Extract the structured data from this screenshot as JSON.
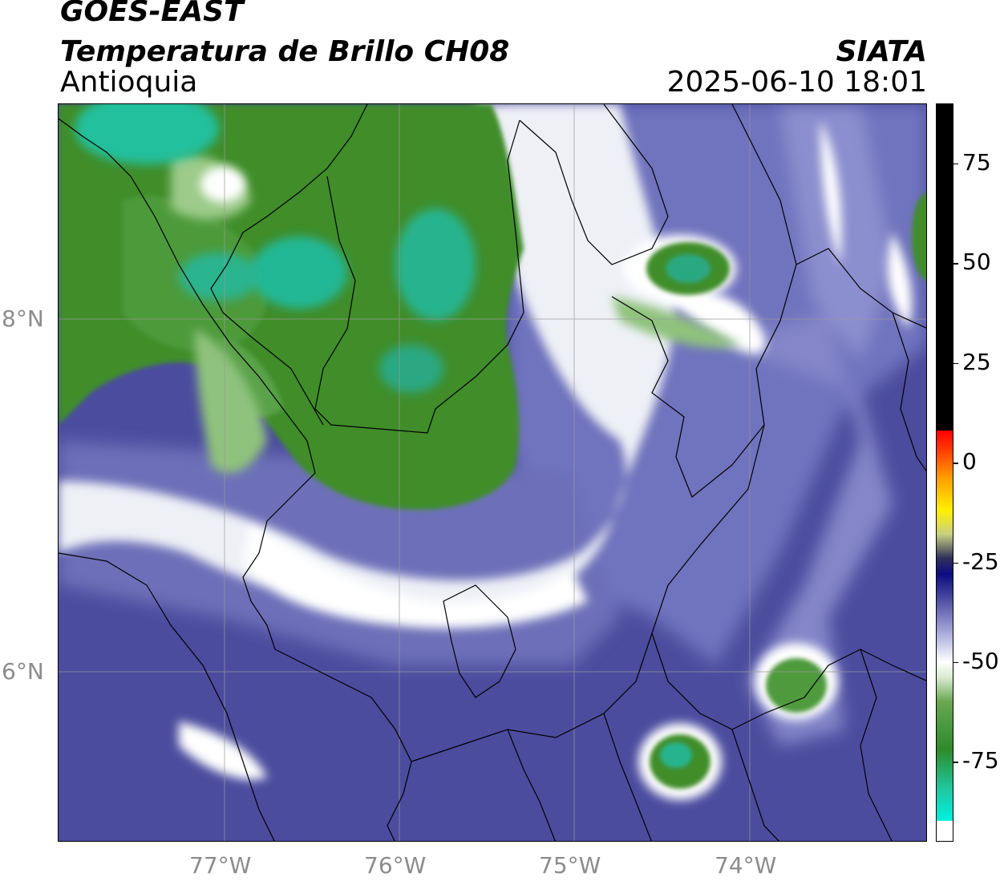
{
  "header": {
    "satellite": "GOES-EAST",
    "product": "Temperatura de Brillo CH08",
    "region": "Antioquia",
    "agency": "SIATA",
    "timestamp": "2025-06-10 18:01"
  },
  "map": {
    "longitude_labels": [
      "77°W",
      "76°W",
      "75°W",
      "74°W"
    ],
    "latitude_labels": [
      "8°N",
      "6°N"
    ],
    "longitudes": [
      -77,
      -76,
      -75,
      -74
    ],
    "latitudes": [
      8,
      6
    ],
    "colors": {
      "cold_cloud_green": "#3f8f2a",
      "cold_cloud_cyan": "#22c4a0",
      "transition_white": "#ffffff",
      "mid_blue": "#6a6db8",
      "deep_blue": "#46479b",
      "border_line": "#000000",
      "grid_line": "#9a9a9a"
    }
  },
  "colorbar": {
    "tick_labels": [
      "75",
      "50",
      "25",
      "0",
      "-25",
      "-50",
      "-75"
    ],
    "tick_values": [
      75,
      50,
      25,
      0,
      -25,
      -50,
      -75
    ],
    "range": [
      -95,
      90
    ],
    "stops": [
      {
        "v": -95,
        "c": "#ffffff"
      },
      {
        "v": -90,
        "c": "#ffffff"
      },
      {
        "v": -89.9,
        "c": "#00f0e0"
      },
      {
        "v": -82,
        "c": "#20c8a0"
      },
      {
        "v": -72,
        "c": "#2e8a2a"
      },
      {
        "v": -60,
        "c": "#6aa852"
      },
      {
        "v": -54,
        "c": "#d8ead0"
      },
      {
        "v": -50,
        "c": "#ffffff"
      },
      {
        "v": -42,
        "c": "#9fa2d6"
      },
      {
        "v": -34,
        "c": "#4a4aa0"
      },
      {
        "v": -28,
        "c": "#0c0c80"
      },
      {
        "v": -24,
        "c": "#30305a"
      },
      {
        "v": -18,
        "c": "#c8d080"
      },
      {
        "v": -12,
        "c": "#fff000"
      },
      {
        "v": -4,
        "c": "#ffa000"
      },
      {
        "v": 4,
        "c": "#ff3000"
      },
      {
        "v": 8,
        "c": "#ff0000"
      },
      {
        "v": 8.1,
        "c": "#000000"
      },
      {
        "v": 90,
        "c": "#000000"
      }
    ]
  }
}
